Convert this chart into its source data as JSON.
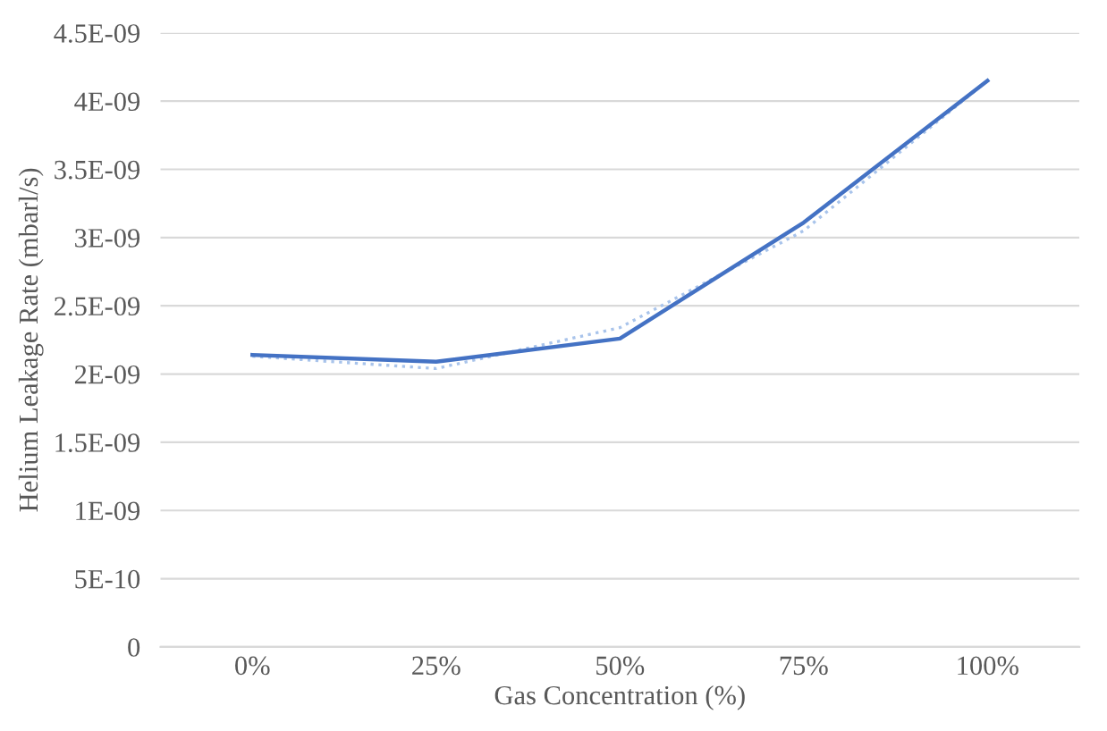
{
  "chart_data": {
    "type": "line",
    "xlabel": "Gas Concentration (%)",
    "ylabel": "Helium Leakage Rate (mbarl/s)",
    "categories": [
      "0%",
      "25%",
      "50%",
      "75%",
      "100%"
    ],
    "series": [
      {
        "color": "#4472c4",
        "values": [
          2.14e-09,
          2.09e-09,
          2.26e-09,
          3.11e-09,
          4.15e-09
        ],
        "line_style": "solid"
      },
      {
        "color": "#a9c4eb",
        "values": [
          2.13e-09,
          2.04e-09,
          2.34e-09,
          3.05e-09,
          4.15e-09
        ],
        "line_style": "dotted"
      }
    ],
    "ylim": [
      0,
      4.5e-09
    ],
    "yticks": [
      0,
      {
        "value": 5e-10,
        "label": "5E-10"
      },
      {
        "value": 1e-09,
        "label": "1E-09"
      },
      {
        "value": 1.5e-09,
        "label": "1.5E-09"
      },
      {
        "value": 2e-09,
        "label": "2E-09"
      },
      {
        "value": 2.5e-09,
        "label": "2.5E-09"
      },
      {
        "value": 3e-09,
        "label": "3E-09"
      },
      {
        "value": 3.5e-09,
        "label": "3.5E-09"
      },
      {
        "value": 4e-09,
        "label": "4E-09"
      },
      {
        "value": 4.5e-09,
        "label": "4.5E-09"
      }
    ],
    "grid": "y",
    "legend": false
  }
}
